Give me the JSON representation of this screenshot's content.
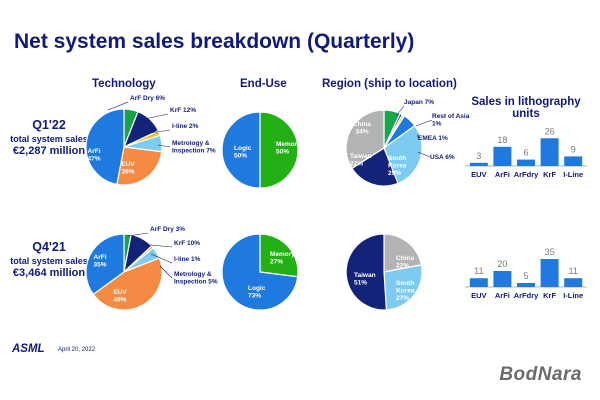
{
  "title": "Net system sales breakdown (Quarterly)",
  "headers": {
    "technology": "Technology",
    "end_use": "End-Use",
    "region": "Region (ship to location)",
    "units": "Sales in lithography units"
  },
  "periods": [
    {
      "label": "Q1'22",
      "sub": "total system sales",
      "value": "€2,287 million"
    },
    {
      "label": "Q4'21",
      "sub": "total system sales",
      "value": "€3,464 million"
    }
  ],
  "footer": {
    "logo": "ASML",
    "date": "April 20, 2022"
  },
  "watermark": "BodNara",
  "colors": {
    "euv": "#f58a42",
    "arfi": "#1f7ae0",
    "arfdry": "#16a34a",
    "krf": "#14237a",
    "iline": "#f0c21a",
    "metrology": "#7ecbf2",
    "memory": "#22b014",
    "logo": "#1f7ae0",
    "china": "#b3b3b3",
    "japan": "#14a84a",
    "restasia": "#0f2a7a",
    "emea": "#f0c21a",
    "usa": "#1f7ae0",
    "taiwan": "#14237a",
    "korea": "#7ecbf2",
    "bar": "#1f7ae0",
    "title": "#0f1a7a"
  },
  "chart_data": [
    {
      "type": "pie",
      "name_printed": "Technology",
      "period": "Q1'22",
      "slices": [
        {
          "label": "EUV",
          "value": 26,
          "text": "EUV 26%"
        },
        {
          "label": "ArFi",
          "value": 47,
          "text": "ArFi 47%"
        },
        {
          "label": "ArF Dry",
          "value": 6,
          "text": "ArF Dry 6%"
        },
        {
          "label": "KrF",
          "value": 12,
          "text": "KrF 12%"
        },
        {
          "label": "I-line",
          "value": 2,
          "text": "I-line 2%"
        },
        {
          "label": "Metrology & Inspection",
          "value": 7,
          "text": "Metrology & Inspection 7%"
        }
      ]
    },
    {
      "type": "pie",
      "name_printed": "End-Use",
      "period": "Q1'22",
      "slices": [
        {
          "label": "Memory",
          "value": 50,
          "text": "Memory 50%"
        },
        {
          "label": "Logic",
          "value": 50,
          "text": "Logic 50%"
        }
      ]
    },
    {
      "type": "pie",
      "name_printed": "Region (ship to location)",
      "period": "Q1'22",
      "slices": [
        {
          "label": "Japan",
          "value": 7,
          "text": "Japan 7%"
        },
        {
          "label": "Rest of Asia",
          "value": 1,
          "text": "Rest of Asia 1%"
        },
        {
          "label": "EMEA",
          "value": 1,
          "text": "EMEA 1%"
        },
        {
          "label": "USA",
          "value": 6,
          "text": "USA 6%"
        },
        {
          "label": "South Korea",
          "value": 29,
          "text": "South Korea 29%"
        },
        {
          "label": "Taiwan",
          "value": 22,
          "text": "Taiwan 22%"
        },
        {
          "label": "China",
          "value": 34,
          "text": "China 34%"
        }
      ]
    },
    {
      "type": "bar",
      "name_printed": "Sales in lithography units",
      "period": "Q1'22",
      "categories": [
        "EUV",
        "ArFi",
        "ArFdry",
        "KrF",
        "I-Line"
      ],
      "values": [
        3,
        18,
        6,
        26,
        9
      ],
      "ylim": [
        0,
        30
      ]
    },
    {
      "type": "pie",
      "name_printed": "Technology",
      "period": "Q4'21",
      "slices": [
        {
          "label": "EUV",
          "value": 46,
          "text": "EUV 46%"
        },
        {
          "label": "ArFi",
          "value": 35,
          "text": "ArFi 35%"
        },
        {
          "label": "ArF Dry",
          "value": 3,
          "text": "ArF Dry 3%"
        },
        {
          "label": "KrF",
          "value": 10,
          "text": "KrF 10%"
        },
        {
          "label": "I-line",
          "value": 1,
          "text": "I-line 1%"
        },
        {
          "label": "Metrology & Inspection",
          "value": 5,
          "text": "Metrology & Inspection 5%"
        }
      ]
    },
    {
      "type": "pie",
      "name_printed": "End-Use",
      "period": "Q4'21",
      "slices": [
        {
          "label": "Memory",
          "value": 27,
          "text": "Memory 27%"
        },
        {
          "label": "Logic",
          "value": 73,
          "text": "Logic 73%"
        }
      ]
    },
    {
      "type": "pie",
      "name_printed": "Region (ship to location)",
      "period": "Q4'21",
      "slices": [
        {
          "label": "China",
          "value": 22,
          "text": "China 22%"
        },
        {
          "label": "South Korea",
          "value": 27,
          "text": "South Korea 27%"
        },
        {
          "label": "Taiwan",
          "value": 51,
          "text": "Taiwan 51%"
        }
      ]
    },
    {
      "type": "bar",
      "name_printed": "Sales in lithography units",
      "period": "Q4'21",
      "categories": [
        "EUV",
        "ArFi",
        "ArFdry",
        "KrF",
        "I-Line"
      ],
      "values": [
        11,
        20,
        5,
        35,
        11
      ],
      "ylim": [
        0,
        40
      ]
    }
  ]
}
